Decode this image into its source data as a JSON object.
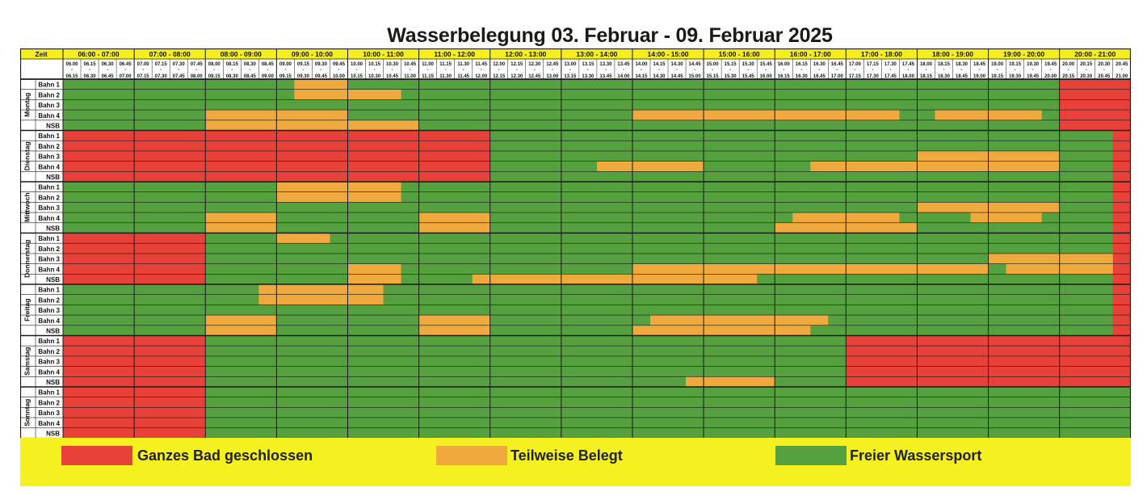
{
  "title": "Wasserbelegung 03. Februar - 09. Februar 2025",
  "colors": {
    "closed": "#e8413a",
    "partial": "#f0a93c",
    "free": "#55a13f",
    "header_bg": "#f6ef1e",
    "grid_line": "#1a1a1a"
  },
  "header": {
    "zeit_label": "Zeit",
    "hours": [
      "06:00 - 07:00",
      "07:00 - 08:00",
      "08:00 - 09:00",
      "09:00 - 10:00",
      "10:00 - 11:00",
      "11:00 - 12:00",
      "12:00 - 13:00",
      "13:00 - 14:00",
      "14:00 - 15:00",
      "15:00 - 16:00",
      "16:00 - 17:00",
      "17:00 - 18:00",
      "18:00 - 19:00",
      "19:00 - 20:00",
      "20:00 - 21:00"
    ],
    "slot_starts": [
      "06.00",
      "06.15",
      "06.30",
      "06.45",
      "07.00",
      "07.15",
      "07.30",
      "07.45",
      "08.00",
      "08.15",
      "08.30",
      "08.45",
      "09.00",
      "09.15",
      "09.30",
      "09.45",
      "10.00",
      "10.15",
      "10.30",
      "10.45",
      "11.00",
      "11.15",
      "11.30",
      "11.45",
      "12.00",
      "12.15",
      "12.30",
      "12.45",
      "13.00",
      "13.15",
      "13.30",
      "13.45",
      "14.00",
      "14.15",
      "14.30",
      "14.45",
      "15.00",
      "15.15",
      "15.30",
      "15.45",
      "16.00",
      "16.15",
      "16.30",
      "16.45",
      "17.00",
      "17.15",
      "17.30",
      "17.45",
      "18.00",
      "18.15",
      "18.30",
      "18.45",
      "19.00",
      "19.15",
      "19.30",
      "19.45",
      "20.00",
      "20.15",
      "20.30",
      "20.45"
    ],
    "slot_ends": [
      "06.15",
      "06.30",
      "06.45",
      "07.00",
      "07.15",
      "07.30",
      "07.45",
      "08.00",
      "08.15",
      "08.30",
      "08.45",
      "09.00",
      "09.15",
      "09.30",
      "09.45",
      "10.00",
      "10.15",
      "10.30",
      "10.45",
      "11.00",
      "11.15",
      "11.30",
      "11.45",
      "12.00",
      "12.15",
      "12.30",
      "12.45",
      "13.00",
      "13.15",
      "13.30",
      "13.45",
      "14.00",
      "14.15",
      "14.30",
      "14.45",
      "15.00",
      "15.15",
      "15.30",
      "15.45",
      "16.00",
      "16.15",
      "16.30",
      "16.45",
      "17.00",
      "17.15",
      "17.30",
      "17.45",
      "18.00",
      "18.15",
      "18.30",
      "18.45",
      "19.00",
      "19.15",
      "19.30",
      "19.45",
      "20.00",
      "20.15",
      "20.30",
      "20.45",
      "21.00"
    ],
    "slot_dash": "-"
  },
  "status_key": {
    "R": "closed",
    "O": "partial",
    "G": "free"
  },
  "days": [
    {
      "name": "Montag",
      "lanes": [
        {
          "label": "Bahn 1",
          "runs": [
            [
              "G",
              13
            ],
            [
              "O",
              3
            ],
            [
              "G",
              40
            ],
            [
              "R",
              4
            ]
          ]
        },
        {
          "label": "Bahn 2",
          "runs": [
            [
              "G",
              13
            ],
            [
              "O",
              6
            ],
            [
              "G",
              37
            ],
            [
              "R",
              4
            ]
          ]
        },
        {
          "label": "Bahn 3",
          "runs": [
            [
              "G",
              56
            ],
            [
              "R",
              4
            ]
          ]
        },
        {
          "label": "Bahn 4",
          "runs": [
            [
              "G",
              8
            ],
            [
              "O",
              8
            ],
            [
              "G",
              16
            ],
            [
              "O",
              15
            ],
            [
              "G",
              2
            ],
            [
              "O",
              6
            ],
            [
              "G",
              1
            ],
            [
              "R",
              4
            ]
          ]
        },
        {
          "label": "NSB",
          "runs": [
            [
              "G",
              8
            ],
            [
              "O",
              12
            ],
            [
              "G",
              36
            ],
            [
              "R",
              4
            ]
          ]
        }
      ]
    },
    {
      "name": "Dienstag",
      "lanes": [
        {
          "label": "Bahn 1",
          "runs": [
            [
              "R",
              24
            ],
            [
              "G",
              35
            ],
            [
              "R",
              1
            ]
          ]
        },
        {
          "label": "Bahn 2",
          "runs": [
            [
              "R",
              24
            ],
            [
              "G",
              35
            ],
            [
              "R",
              1
            ]
          ]
        },
        {
          "label": "Bahn 3",
          "runs": [
            [
              "R",
              24
            ],
            [
              "G",
              24
            ],
            [
              "O",
              8
            ],
            [
              "G",
              3
            ],
            [
              "R",
              1
            ]
          ]
        },
        {
          "label": "Bahn 4",
          "runs": [
            [
              "R",
              24
            ],
            [
              "G",
              6
            ],
            [
              "O",
              6
            ],
            [
              "G",
              6
            ],
            [
              "O",
              14
            ],
            [
              "G",
              3
            ],
            [
              "R",
              1
            ]
          ]
        },
        {
          "label": "NSB",
          "runs": [
            [
              "R",
              24
            ],
            [
              "G",
              35
            ],
            [
              "R",
              1
            ]
          ]
        }
      ]
    },
    {
      "name": "Mittwoch",
      "lanes": [
        {
          "label": "Bahn 1",
          "runs": [
            [
              "G",
              12
            ],
            [
              "O",
              7
            ],
            [
              "G",
              40
            ],
            [
              "R",
              1
            ]
          ]
        },
        {
          "label": "Bahn 2",
          "runs": [
            [
              "G",
              12
            ],
            [
              "O",
              7
            ],
            [
              "G",
              40
            ],
            [
              "R",
              1
            ]
          ]
        },
        {
          "label": "Bahn 3",
          "runs": [
            [
              "G",
              48
            ],
            [
              "O",
              8
            ],
            [
              "G",
              3
            ],
            [
              "R",
              1
            ]
          ]
        },
        {
          "label": "Bahn 4",
          "runs": [
            [
              "G",
              8
            ],
            [
              "O",
              4
            ],
            [
              "G",
              8
            ],
            [
              "O",
              4
            ],
            [
              "G",
              17
            ],
            [
              "O",
              6
            ],
            [
              "G",
              4
            ],
            [
              "O",
              4
            ],
            [
              "G",
              4
            ],
            [
              "R",
              1
            ]
          ]
        },
        {
          "label": "NSB",
          "runs": [
            [
              "G",
              8
            ],
            [
              "O",
              4
            ],
            [
              "G",
              8
            ],
            [
              "O",
              4
            ],
            [
              "G",
              16
            ],
            [
              "O",
              8
            ],
            [
              "G",
              11
            ],
            [
              "R",
              1
            ]
          ]
        }
      ]
    },
    {
      "name": "Donnerstag",
      "lanes": [
        {
          "label": "Bahn 1",
          "runs": [
            [
              "R",
              8
            ],
            [
              "G",
              4
            ],
            [
              "O",
              3
            ],
            [
              "G",
              44
            ],
            [
              "R",
              1
            ]
          ]
        },
        {
          "label": "Bahn 2",
          "runs": [
            [
              "R",
              8
            ],
            [
              "G",
              51
            ],
            [
              "R",
              1
            ]
          ]
        },
        {
          "label": "Bahn 3",
          "runs": [
            [
              "R",
              8
            ],
            [
              "G",
              44
            ],
            [
              "O",
              7
            ],
            [
              "R",
              1
            ]
          ]
        },
        {
          "label": "Bahn 4",
          "runs": [
            [
              "R",
              8
            ],
            [
              "G",
              8
            ],
            [
              "O",
              3
            ],
            [
              "G",
              13
            ],
            [
              "O",
              20
            ],
            [
              "G",
              1
            ],
            [
              "O",
              6
            ],
            [
              "R",
              1
            ]
          ]
        },
        {
          "label": "NSB",
          "runs": [
            [
              "R",
              8
            ],
            [
              "G",
              8
            ],
            [
              "O",
              3
            ],
            [
              "G",
              4
            ],
            [
              "O",
              16
            ],
            [
              "G",
              20
            ],
            [
              "R",
              1
            ]
          ]
        }
      ]
    },
    {
      "name": "Freitag",
      "lanes": [
        {
          "label": "Bahn 1",
          "runs": [
            [
              "G",
              11
            ],
            [
              "O",
              7
            ],
            [
              "G",
              41
            ],
            [
              "R",
              1
            ]
          ]
        },
        {
          "label": "Bahn 2",
          "runs": [
            [
              "G",
              11
            ],
            [
              "O",
              7
            ],
            [
              "G",
              41
            ],
            [
              "R",
              1
            ]
          ]
        },
        {
          "label": "Bahn 3",
          "runs": [
            [
              "G",
              59
            ],
            [
              "R",
              1
            ]
          ]
        },
        {
          "label": "Bahn 4",
          "runs": [
            [
              "G",
              8
            ],
            [
              "O",
              4
            ],
            [
              "G",
              8
            ],
            [
              "O",
              4
            ],
            [
              "G",
              9
            ],
            [
              "O",
              10
            ],
            [
              "G",
              16
            ],
            [
              "R",
              1
            ]
          ]
        },
        {
          "label": "NSB",
          "runs": [
            [
              "G",
              8
            ],
            [
              "O",
              4
            ],
            [
              "G",
              8
            ],
            [
              "O",
              4
            ],
            [
              "G",
              8
            ],
            [
              "O",
              10
            ],
            [
              "G",
              17
            ],
            [
              "R",
              1
            ]
          ]
        }
      ]
    },
    {
      "name": "Samstag",
      "lanes": [
        {
          "label": "Bahn 1",
          "runs": [
            [
              "R",
              8
            ],
            [
              "G",
              36
            ],
            [
              "R",
              16
            ]
          ]
        },
        {
          "label": "Bahn 2",
          "runs": [
            [
              "R",
              8
            ],
            [
              "G",
              36
            ],
            [
              "R",
              16
            ]
          ]
        },
        {
          "label": "Bahn 3",
          "runs": [
            [
              "R",
              8
            ],
            [
              "G",
              36
            ],
            [
              "R",
              16
            ]
          ]
        },
        {
          "label": "Bahn 4",
          "runs": [
            [
              "R",
              8
            ],
            [
              "G",
              36
            ],
            [
              "R",
              16
            ]
          ]
        },
        {
          "label": "NSB",
          "runs": [
            [
              "R",
              8
            ],
            [
              "G",
              27
            ],
            [
              "O",
              5
            ],
            [
              "G",
              4
            ],
            [
              "R",
              16
            ]
          ]
        }
      ]
    },
    {
      "name": "Sonntag",
      "lanes": [
        {
          "label": "Bahn 1",
          "runs": [
            [
              "R",
              8
            ],
            [
              "G",
              36
            ],
            [
              "G",
              16
            ]
          ]
        },
        {
          "label": "Bahn 2",
          "runs": [
            [
              "R",
              8
            ],
            [
              "G",
              52
            ]
          ]
        },
        {
          "label": "Bahn 3",
          "runs": [
            [
              "R",
              8
            ],
            [
              "G",
              52
            ]
          ]
        },
        {
          "label": "Bahn 4",
          "runs": [
            [
              "R",
              8
            ],
            [
              "G",
              52
            ]
          ]
        },
        {
          "label": "NSB",
          "runs": [
            [
              "R",
              8
            ],
            [
              "G",
              52
            ]
          ]
        }
      ]
    }
  ],
  "legend": [
    {
      "label": "Ganzes Bad geschlossen",
      "status": "closed"
    },
    {
      "label": "Teilweise Belegt",
      "status": "partial"
    },
    {
      "label": "Freier Wassersport",
      "status": "free"
    }
  ]
}
